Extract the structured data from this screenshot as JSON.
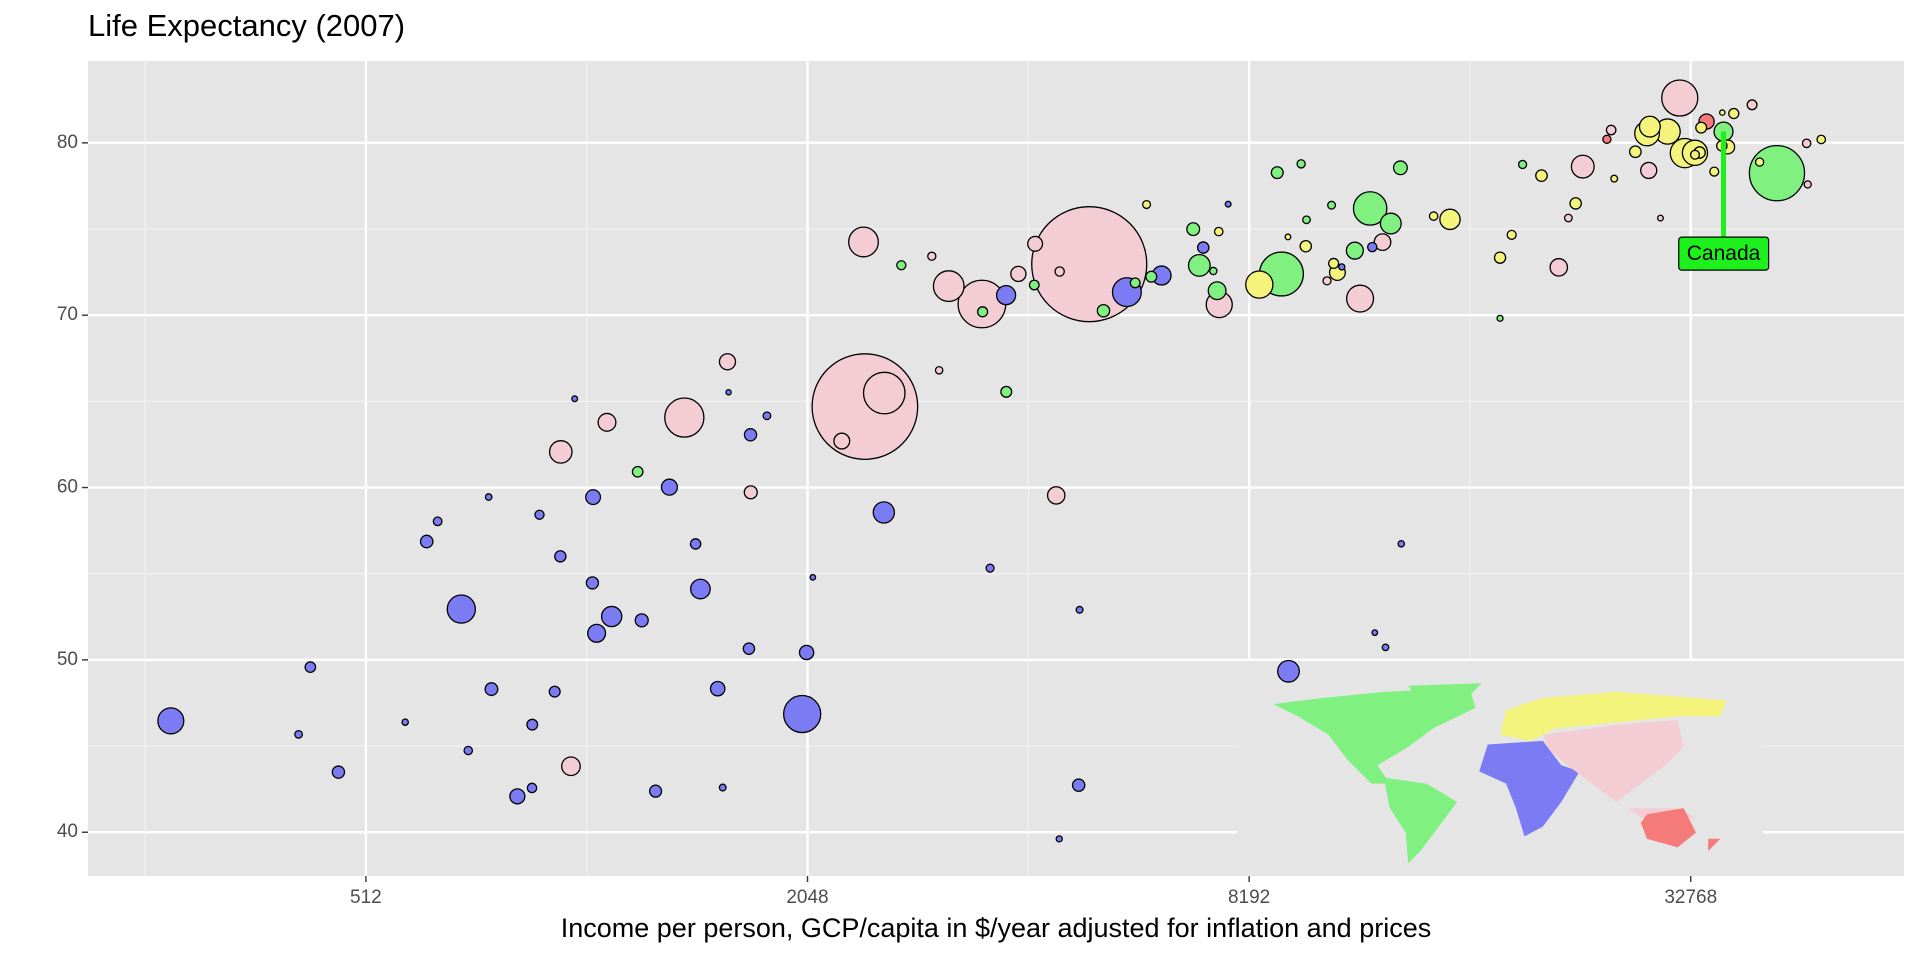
{
  "chart_data": {
    "type": "scatter",
    "title": "Life Expectancy (2007)",
    "x_label": "Income per person, GCP/capita in $/year adjusted for inflation and prices",
    "log_x": true,
    "xlim": [
      214,
      64000
    ],
    "ylim": [
      37.46,
      84.75
    ],
    "xticks": [
      512,
      2048,
      8192,
      32768
    ],
    "yticks": [
      40,
      50,
      60,
      70,
      80
    ],
    "grid": true,
    "annotation": {
      "text": "Canada",
      "x": 36319.24,
      "y": 80.653,
      "color": "#1ef01e"
    },
    "series": [
      {
        "color": "#7b7bf4",
        "x": [
          6223.37,
          4797.23,
          1441.28,
          12569.85,
          1217.03,
          430.07,
          2042.1,
          706.02,
          1704.06,
          986.15,
          277.55,
          3632.56,
          1544.75,
          2082.48,
          5581.18,
          12154.09,
          641.37,
          690.81,
          13206.48,
          752.75,
          1327.61,
          942.65,
          579.23,
          1463.25,
          1569.33,
          414.51,
          12057.5,
          1044.77,
          759.35,
          1042.58,
          1803.15,
          10956.99,
          3820.18,
          823.69,
          4811.06,
          619.68,
          2013.98,
          7670.12,
          863.09,
          1598.44,
          1712.47,
          862.54,
          926.14,
          9269.66,
          2602.39,
          4513.48,
          1107.48,
          882.97,
          7092.92,
          1056.38,
          1271.21,
          469.71
        ],
        "values": [
          72.301,
          42.731,
          56.728,
          50.728,
          52.295,
          49.58,
          50.43,
          44.741,
          50.651,
          65.152,
          46.462,
          55.322,
          48.328,
          54.791,
          71.338,
          51.579,
          58.04,
          52.947,
          56.735,
          59.448,
          60.022,
          56.007,
          46.388,
          54.11,
          42.592,
          45.678,
          73.952,
          59.443,
          48.303,
          54.467,
          64.164,
          72.801,
          71.164,
          42.082,
          52.906,
          56.867,
          46.859,
          76.442,
          46.242,
          65.528,
          63.062,
          42.568,
          48.159,
          49.339,
          58.556,
          39.613,
          52.517,
          58.42,
          73.923,
          51.542,
          42.384,
          43.487
        ],
        "size": [
          33333216,
          12420476,
          8078314,
          1639131,
          14326203,
          8390505,
          17696293,
          4369038,
          10238807,
          710960,
          64606759,
          3800610,
          18013409,
          496374,
          80264543,
          551201,
          4906585,
          76511887,
          1454867,
          1688359,
          22873338,
          9947814,
          1472041,
          35610177,
          2012649,
          3193942,
          6036914,
          19167654,
          13327079,
          12031795,
          3270065,
          1250882,
          33757175,
          19951656,
          2055080,
          12894865,
          135031164,
          798094,
          8860588,
          199579,
          12267493,
          6144562,
          9118773,
          43997828,
          42292929,
          1133066,
          38139640,
          5701579,
          10276158,
          29170398,
          11746035,
          12311143
        ]
      },
      {
        "color": "#80f080",
        "x": [
          12779.38,
          3822.14,
          9065.8,
          36319.24,
          13171.64,
          7006.58,
          9645.06,
          8948.1,
          6025.37,
          6873.26,
          5728.35,
          5186.05,
          1201.64,
          3548.33,
          7320.88,
          11977.57,
          2749.32,
          9809.19,
          4172.84,
          7408.91,
          19328.71,
          18008.51,
          42951.65,
          10611.46,
          11415.81
        ],
        "values": [
          75.32,
          65.554,
          72.39,
          80.653,
          78.553,
          72.889,
          78.782,
          78.273,
          72.235,
          74.994,
          71.878,
          70.259,
          60.916,
          70.198,
          72.567,
          76.195,
          72.899,
          75.537,
          71.752,
          71.421,
          78.746,
          69.819,
          78.242,
          76.384,
          73.747
        ],
        "size": [
          40301927,
          9119152,
          190010647,
          33390141,
          16284741,
          44227550,
          4133884,
          11416987,
          9319622,
          13755680,
          6939688,
          12572928,
          8502814,
          7483763,
          2780132,
          108700891,
          5675356,
          3242173,
          6667147,
          28674757,
          3942491,
          1056608,
          301139947,
          3447496,
          26084662
        ]
      },
      {
        "color": "#f3cdd3",
        "x": [
          974.58,
          29796.05,
          1391.25,
          1713.78,
          4959.11,
          39724.98,
          2452.21,
          3540.65,
          11605.71,
          4471.06,
          25523.28,
          31656.07,
          4519.46,
          1593.07,
          23348.14,
          47306.99,
          10461.06,
          12451.66,
          3095.77,
          944.0,
          1091.36,
          22316.19,
          2605.95,
          3190.48,
          21654.83,
          47143.18,
          3970.1,
          4184.55,
          28718.28,
          7458.4,
          2441.58,
          3025.35,
          2280.77
        ],
        "values": [
          43.828,
          75.635,
          64.062,
          59.723,
          72.961,
          82.208,
          64.698,
          70.65,
          70.964,
          59.545,
          80.745,
          82.603,
          72.535,
          67.297,
          78.623,
          77.588,
          71.993,
          74.241,
          66.803,
          62.069,
          63.785,
          75.64,
          65.483,
          71.688,
          72.777,
          79.972,
          72.396,
          74.143,
          78.4,
          70.616,
          74.249,
          73.422,
          62.698
        ],
        "size": [
          31889923,
          708573,
          150448339,
          14131858,
          1318683096,
          6980412,
          1110396331,
          223547000,
          69453570,
          27499638,
          6426679,
          127467972,
          6053193,
          23301725,
          49044790,
          2505559,
          3921278,
          24821286,
          2874127,
          47761980,
          28901790,
          3204897,
          169270617,
          91077287,
          27601038,
          4553009,
          20378239,
          19314747,
          23174294,
          65068149,
          85262356,
          4018332,
          22211743
        ]
      },
      {
        "color": "#f4f47c",
        "x": [
          5937.03,
          36126.49,
          33692.61,
          7446.3,
          10680.79,
          14619.22,
          22833.31,
          35278.42,
          33207.08,
          30470.02,
          32170.37,
          27538.41,
          18008.94,
          36180.79,
          40676.0,
          28569.72,
          9253.9,
          36797.93,
          49357.19,
          15389.92,
          20509.65,
          10808.48,
          9786.53,
          18678.31,
          25768.26,
          28821.06,
          33859.75,
          37506.42,
          8458.28,
          33203.26
        ],
        "values": [
          76.423,
          79.829,
          79.441,
          74.852,
          73.005,
          75.748,
          76.486,
          78.332,
          79.313,
          80.657,
          79.406,
          79.483,
          73.338,
          81.757,
          78.885,
          80.546,
          74.543,
          79.762,
          80.196,
          75.563,
          78.098,
          72.476,
          74.002,
          74.663,
          77.926,
          80.941,
          80.884,
          81.701,
          71.777,
          79.425
        ],
        "size": [
          3600523,
          8199783,
          10392226,
          4552198,
          7322858,
          4493312,
          10228744,
          5468120,
          5238460,
          61083916,
          82400996,
          10706290,
          9956108,
          301931,
          4109086,
          58147733,
          684736,
          16570613,
          4627926,
          38518241,
          10642836,
          22276056,
          10150265,
          5447502,
          2009245,
          40448191,
          9031088,
          7554661,
          71158647,
          60776238
        ]
      },
      {
        "color": "#f57a7a",
        "x": [
          34435.37,
          25185.01
        ],
        "values": [
          81.235,
          80.204
        ],
        "size": [
          20434176,
          4115771
        ]
      }
    ]
  }
}
